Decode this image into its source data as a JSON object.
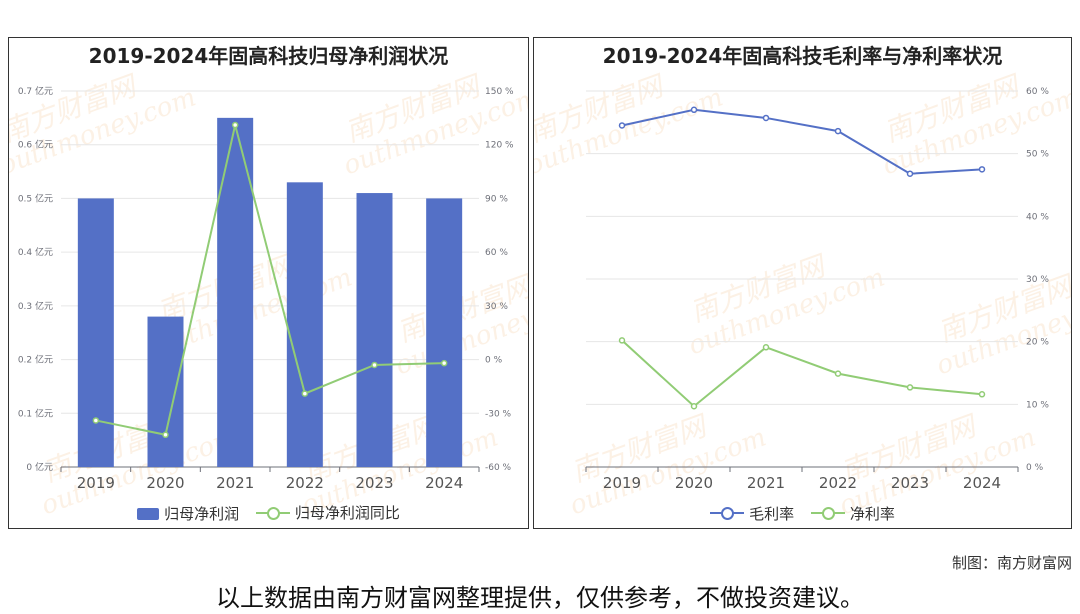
{
  "watermark": {
    "brand": "南方财富网",
    "domain": "outhmoney.com"
  },
  "chart_data": [
    {
      "type": "bar",
      "title": "2019-2024年固高科技归母净利润状况",
      "categories": [
        "2019",
        "2020",
        "2021",
        "2022",
        "2023",
        "2024"
      ],
      "series": [
        {
          "name": "归母净利润",
          "type": "bar",
          "axis": "left",
          "color": "#5470c6",
          "values": [
            0.5,
            0.28,
            0.65,
            0.53,
            0.51,
            0.5
          ]
        },
        {
          "name": "归母净利润同比",
          "type": "line",
          "axis": "right",
          "color": "#91cc75",
          "values": [
            -34,
            -42,
            131,
            -19,
            -3,
            -2
          ]
        }
      ],
      "left_axis": {
        "min": 0,
        "max": 0.7,
        "step": 0.1,
        "unit": "亿元"
      },
      "right_axis": {
        "min": -60,
        "max": 150,
        "step": 30,
        "unit": "%"
      },
      "left_ticks": [
        "0 亿元",
        "0.1 亿元",
        "0.2 亿元",
        "0.3 亿元",
        "0.4 亿元",
        "0.5 亿元",
        "0.6 亿元",
        "0.7 亿元"
      ],
      "right_ticks": [
        "-60 %",
        "-30 %",
        "0 %",
        "30 %",
        "60 %",
        "90 %",
        "120 %",
        "150 %"
      ],
      "grid": true,
      "legend": "bottom"
    },
    {
      "type": "line",
      "title": "2019-2024年固高科技毛利率与净利率状况",
      "categories": [
        "2019",
        "2020",
        "2021",
        "2022",
        "2023",
        "2024"
      ],
      "series": [
        {
          "name": "毛利率",
          "color": "#5470c6",
          "values": [
            54.5,
            57,
            55.7,
            53.6,
            46.8,
            47.5
          ]
        },
        {
          "name": "净利率",
          "color": "#91cc75",
          "values": [
            20.2,
            9.7,
            19.1,
            14.9,
            12.7,
            11.6
          ]
        }
      ],
      "right_axis": {
        "min": 0,
        "max": 60,
        "step": 10,
        "unit": "%"
      },
      "right_ticks": [
        "0 %",
        "10 %",
        "20 %",
        "30 %",
        "40 %",
        "50 %",
        "60 %"
      ],
      "grid": true,
      "legend": "bottom"
    }
  ],
  "footer": {
    "credit": "制图：南方财富网",
    "disclaimer": "以上数据由南方财富网整理提供，仅供参考，不做投资建议。"
  }
}
